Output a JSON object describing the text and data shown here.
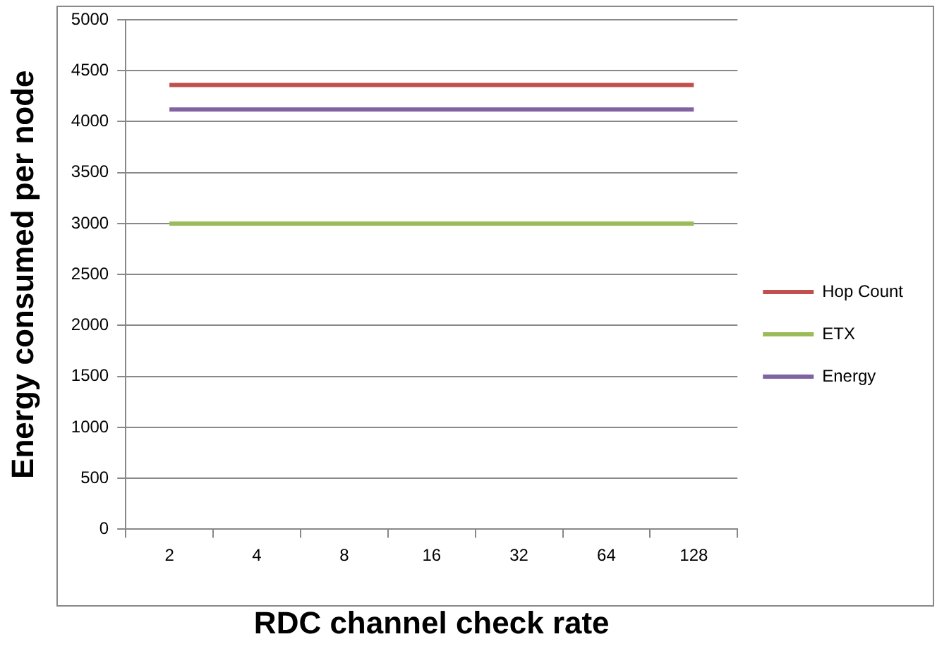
{
  "chart_data": {
    "type": "line",
    "xlabel": "RDC channel check rate",
    "ylabel": "Energy consumed per node",
    "categories": [
      "2",
      "4",
      "8",
      "16",
      "32",
      "64",
      "128"
    ],
    "series": [
      {
        "name": "Hop Count",
        "color": "#c0504d",
        "values": [
          4360,
          4360,
          4360,
          4360,
          4360,
          4360,
          4360
        ]
      },
      {
        "name": "ETX",
        "color": "#9bbb59",
        "values": [
          3000,
          3000,
          3000,
          3000,
          3000,
          3000,
          3000
        ]
      },
      {
        "name": "Energy",
        "color": "#8064a2",
        "values": [
          4120,
          4120,
          4120,
          4120,
          4120,
          4120,
          4120
        ]
      }
    ],
    "ylim": [
      0,
      5000
    ],
    "yticks": [
      0,
      500,
      1000,
      1500,
      2000,
      2500,
      3000,
      3500,
      4000,
      4500,
      5000
    ],
    "grid": "y",
    "legend": "right",
    "marker": "none",
    "line_style": "solid"
  }
}
